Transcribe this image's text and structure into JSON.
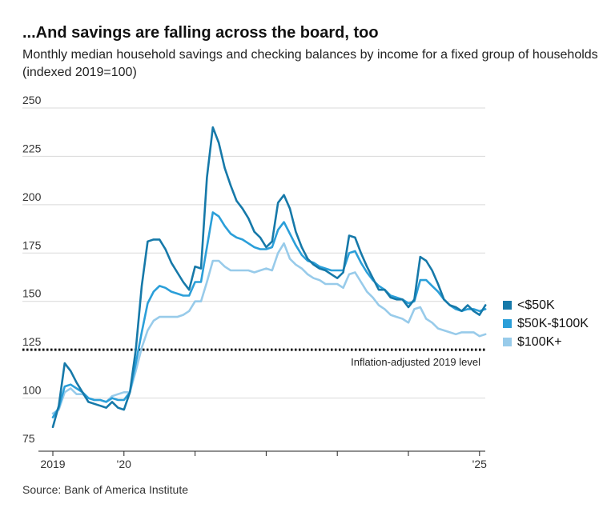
{
  "title": "...And savings are falling across the board, too",
  "subtitle": "Monthly median household savings and checking balances by income for a fixed group of households (indexed 2019=100)",
  "source": "Source: Bank of America Institute",
  "colors": {
    "low": "#1679a9",
    "mid": "#2b9fd9",
    "high": "#98cbea",
    "grid": "#d9d9d9",
    "axis": "#222222"
  },
  "chart_data": {
    "type": "line",
    "title": "...And savings are falling across the board, too",
    "xlabel": "",
    "ylabel": "",
    "ylim": [
      75,
      250
    ],
    "yticks": [
      "250",
      "225",
      "200",
      "175",
      "150",
      "125",
      "100",
      "75"
    ],
    "ytick_values": [
      250,
      225,
      200,
      175,
      150,
      125,
      100,
      75
    ],
    "xticks": [
      {
        "label": "2019",
        "index": 0
      },
      {
        "label": "'20",
        "index": 12
      },
      {
        "label": "",
        "index": 24
      },
      {
        "label": "",
        "index": 36
      },
      {
        "label": "",
        "index": 48
      },
      {
        "label": "",
        "index": 60
      },
      {
        "label": "'25",
        "index": 72
      }
    ],
    "x_start": "2019-01",
    "x_count": 74,
    "reference_line": {
      "value": 125,
      "label": "Inflation-adjusted 2019 level"
    },
    "series": [
      {
        "name": "<$50K",
        "color": "#1679a9",
        "values": [
          85,
          96,
          118,
          114,
          108,
          103,
          98,
          97,
          96,
          95,
          98,
          95,
          94,
          103,
          125,
          158,
          181,
          182,
          182,
          177,
          170,
          165,
          160,
          156,
          168,
          167,
          214,
          240,
          232,
          219,
          210,
          202,
          198,
          193,
          186,
          183,
          178,
          181,
          201,
          205,
          198,
          186,
          178,
          172,
          169,
          167,
          166,
          164,
          162,
          165,
          184,
          183,
          175,
          168,
          162,
          156,
          156,
          152,
          151,
          151,
          147,
          151,
          173,
          171,
          166,
          159,
          151,
          148,
          147,
          145,
          148,
          145,
          143,
          148
        ]
      },
      {
        "name": "$50K-$100K",
        "color": "#2b9fd9",
        "values": [
          90,
          95,
          106,
          107,
          105,
          103,
          100,
          99,
          99,
          98,
          100,
          99,
          99,
          103,
          118,
          134,
          149,
          155,
          158,
          157,
          155,
          154,
          153,
          153,
          160,
          160,
          178,
          196,
          194,
          189,
          185,
          183,
          182,
          180,
          178,
          177,
          177,
          178,
          187,
          191,
          185,
          179,
          174,
          171,
          170,
          168,
          167,
          166,
          166,
          166,
          175,
          176,
          170,
          165,
          161,
          158,
          156,
          153,
          152,
          151,
          149,
          150,
          161,
          161,
          158,
          155,
          151,
          148,
          146,
          145,
          146,
          146,
          145,
          146
        ]
      },
      {
        "name": "$100K+",
        "color": "#98cbea",
        "values": [
          92,
          94,
          103,
          105,
          102,
          102,
          100,
          99,
          99,
          98,
          101,
          102,
          103,
          103,
          114,
          126,
          135,
          140,
          142,
          142,
          142,
          142,
          143,
          145,
          150,
          150,
          160,
          171,
          171,
          168,
          166,
          166,
          166,
          166,
          165,
          166,
          167,
          166,
          175,
          180,
          172,
          169,
          167,
          164,
          162,
          161,
          159,
          159,
          159,
          157,
          164,
          165,
          160,
          155,
          152,
          148,
          146,
          143,
          142,
          141,
          139,
          146,
          147,
          141,
          139,
          136,
          135,
          134,
          133,
          134,
          134,
          134,
          132,
          133
        ]
      }
    ]
  }
}
